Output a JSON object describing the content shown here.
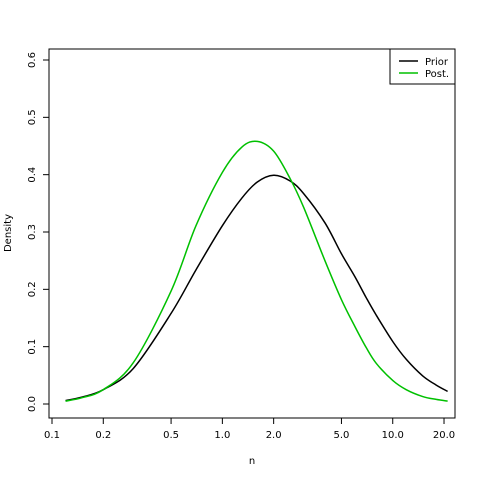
{
  "chart_data": {
    "type": "line",
    "title": "",
    "xlabel": "n",
    "ylabel": "Density",
    "x_scale": "log",
    "xlim": [
      0.12,
      21
    ],
    "ylim": [
      0,
      0.6
    ],
    "x_ticks": [
      {
        "value": 0.1,
        "label": "0.1"
      },
      {
        "value": 0.2,
        "label": "0.2"
      },
      {
        "value": 0.5,
        "label": "0.5"
      },
      {
        "value": 1.0,
        "label": "1.0"
      },
      {
        "value": 2.0,
        "label": "2.0"
      },
      {
        "value": 5.0,
        "label": "5.0"
      },
      {
        "value": 10.0,
        "label": "10.0"
      },
      {
        "value": 20.0,
        "label": "20.0"
      }
    ],
    "y_ticks": [
      {
        "value": 0.0,
        "label": "0.0"
      },
      {
        "value": 0.1,
        "label": "0.1"
      },
      {
        "value": 0.2,
        "label": "0.2"
      },
      {
        "value": 0.3,
        "label": "0.3"
      },
      {
        "value": 0.4,
        "label": "0.4"
      },
      {
        "value": 0.5,
        "label": "0.5"
      },
      {
        "value": 0.6,
        "label": "0.6"
      }
    ],
    "grid": false,
    "legend_position": "top-right",
    "series": [
      {
        "name": "Prior",
        "color": "#000000",
        "x": [
          0.12,
          0.15,
          0.2,
          0.3,
          0.5,
          0.7,
          1.0,
          1.3,
          1.6,
          2.0,
          2.5,
          3.0,
          4.0,
          5.0,
          6.0,
          7.0,
          8.0,
          10.0,
          12.0,
          15.0,
          18.0,
          21.0
        ],
        "y": [
          0.006,
          0.012,
          0.025,
          0.062,
          0.158,
          0.234,
          0.311,
          0.359,
          0.387,
          0.399,
          0.389,
          0.367,
          0.316,
          0.262,
          0.222,
          0.185,
          0.155,
          0.109,
          0.078,
          0.049,
          0.033,
          0.022
        ]
      },
      {
        "name": "Post.",
        "color": "#00c000",
        "x": [
          0.12,
          0.15,
          0.2,
          0.3,
          0.5,
          0.7,
          1.0,
          1.3,
          1.6,
          2.0,
          2.5,
          3.0,
          4.0,
          5.0,
          6.0,
          7.0,
          8.0,
          10.0,
          12.0,
          15.0,
          18.0,
          21.0
        ],
        "y": [
          0.005,
          0.011,
          0.025,
          0.072,
          0.197,
          0.311,
          0.404,
          0.448,
          0.458,
          0.441,
          0.393,
          0.343,
          0.25,
          0.182,
          0.135,
          0.098,
          0.071,
          0.041,
          0.025,
          0.013,
          0.008,
          0.005
        ]
      }
    ]
  }
}
